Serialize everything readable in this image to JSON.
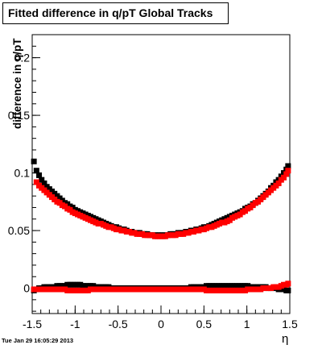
{
  "title": "Fitted difference in q/pT  Global Tracks",
  "timestamp": "Tue Jan 29 16:05:29 2013",
  "chart_data": {
    "type": "scatter",
    "title": "Fitted difference in q/pT  Global Tracks",
    "xlabel": "η",
    "ylabel": "difference in q/pT",
    "xlim": [
      -1.5,
      1.5
    ],
    "ylim": [
      -0.022,
      0.22
    ],
    "x_ticks": [
      -1.5,
      -1,
      -0.5,
      0,
      0.5,
      1,
      1.5
    ],
    "x_tick_labels": [
      "-1.5",
      "-1",
      "-0.5",
      "0",
      "0.5",
      "1",
      "1.5"
    ],
    "y_ticks": [
      0,
      0.05,
      0.1,
      0.15,
      0.2
    ],
    "y_tick_labels": [
      "0",
      "0.05",
      "0.1",
      "0.15",
      "0.2"
    ],
    "grid": false,
    "series": [
      {
        "color": "#000000",
        "marker": "square",
        "x": [
          -1.48,
          -1.45,
          -1.42,
          -1.39,
          -1.36,
          -1.33,
          -1.3,
          -1.27,
          -1.24,
          -1.21,
          -1.18,
          -1.15,
          -1.12,
          -1.09,
          -1.06,
          -1.03,
          -1.0,
          -0.97,
          -0.94,
          -0.91,
          -0.88,
          -0.85,
          -0.82,
          -0.79,
          -0.76,
          -0.73,
          -0.7,
          -0.67,
          -0.64,
          -0.61,
          -0.58,
          -0.55,
          -0.52,
          -0.49,
          -0.46,
          -0.43,
          -0.4,
          -0.37,
          -0.34,
          -0.31,
          -0.28,
          -0.25,
          -0.22,
          -0.19,
          -0.16,
          -0.13,
          -0.1,
          -0.07,
          -0.04,
          -0.01,
          0.02,
          0.05,
          0.08,
          0.11,
          0.14,
          0.17,
          0.2,
          0.23,
          0.26,
          0.29,
          0.32,
          0.35,
          0.38,
          0.41,
          0.44,
          0.47,
          0.5,
          0.53,
          0.56,
          0.59,
          0.62,
          0.65,
          0.68,
          0.71,
          0.74,
          0.77,
          0.8,
          0.83,
          0.86,
          0.89,
          0.92,
          0.95,
          0.98,
          1.01,
          1.04,
          1.07,
          1.1,
          1.13,
          1.16,
          1.19,
          1.22,
          1.25,
          1.28,
          1.31,
          1.34,
          1.37,
          1.4,
          1.43,
          1.46,
          1.48
        ],
        "y": [
          0.11,
          0.102,
          0.098,
          0.094,
          0.091,
          0.088,
          0.086,
          0.084,
          0.082,
          0.08,
          0.078,
          0.076,
          0.074,
          0.073,
          0.071,
          0.07,
          0.068,
          0.067,
          0.066,
          0.065,
          0.064,
          0.063,
          0.062,
          0.061,
          0.06,
          0.059,
          0.058,
          0.057,
          0.056,
          0.055,
          0.054,
          0.053,
          0.053,
          0.052,
          0.051,
          0.051,
          0.05,
          0.049,
          0.049,
          0.048,
          0.048,
          0.048,
          0.047,
          0.047,
          0.047,
          0.046,
          0.046,
          0.046,
          0.046,
          0.046,
          0.046,
          0.046,
          0.046,
          0.047,
          0.047,
          0.047,
          0.048,
          0.048,
          0.048,
          0.049,
          0.049,
          0.05,
          0.05,
          0.051,
          0.051,
          0.052,
          0.053,
          0.053,
          0.054,
          0.055,
          0.056,
          0.057,
          0.058,
          0.059,
          0.06,
          0.061,
          0.062,
          0.063,
          0.064,
          0.065,
          0.066,
          0.067,
          0.069,
          0.07,
          0.071,
          0.073,
          0.074,
          0.076,
          0.078,
          0.08,
          0.082,
          0.084,
          0.087,
          0.089,
          0.092,
          0.094,
          0.097,
          0.1,
          0.103,
          0.106
        ]
      },
      {
        "color": "#ff0000",
        "marker": "square",
        "x": [
          -1.45,
          -1.42,
          -1.39,
          -1.36,
          -1.33,
          -1.3,
          -1.27,
          -1.24,
          -1.21,
          -1.18,
          -1.15,
          -1.12,
          -1.09,
          -1.06,
          -1.03,
          -1.0,
          -0.97,
          -0.94,
          -0.91,
          -0.88,
          -0.85,
          -0.82,
          -0.79,
          -0.76,
          -0.73,
          -0.7,
          -0.67,
          -0.64,
          -0.61,
          -0.58,
          -0.55,
          -0.52,
          -0.49,
          -0.46,
          -0.43,
          -0.4,
          -0.37,
          -0.34,
          -0.31,
          -0.28,
          -0.25,
          -0.22,
          -0.19,
          -0.16,
          -0.13,
          -0.1,
          -0.07,
          -0.04,
          -0.01,
          0.02,
          0.05,
          0.08,
          0.11,
          0.14,
          0.17,
          0.2,
          0.23,
          0.26,
          0.29,
          0.32,
          0.35,
          0.38,
          0.41,
          0.44,
          0.47,
          0.5,
          0.53,
          0.56,
          0.59,
          0.62,
          0.65,
          0.68,
          0.71,
          0.74,
          0.77,
          0.8,
          0.83,
          0.86,
          0.89,
          0.92,
          0.95,
          0.98,
          1.01,
          1.04,
          1.07,
          1.1,
          1.13,
          1.16,
          1.19,
          1.22,
          1.25,
          1.28,
          1.31,
          1.34,
          1.37,
          1.4,
          1.43,
          1.46,
          1.48
        ],
        "y": [
          0.092,
          0.089,
          0.087,
          0.085,
          0.083,
          0.081,
          0.079,
          0.077,
          0.075,
          0.074,
          0.072,
          0.071,
          0.069,
          0.068,
          0.066,
          0.065,
          0.064,
          0.063,
          0.062,
          0.061,
          0.06,
          0.059,
          0.058,
          0.057,
          0.056,
          0.056,
          0.055,
          0.054,
          0.053,
          0.053,
          0.052,
          0.051,
          0.051,
          0.05,
          0.05,
          0.049,
          0.049,
          0.048,
          0.048,
          0.047,
          0.047,
          0.047,
          0.046,
          0.046,
          0.046,
          0.046,
          0.045,
          0.045,
          0.045,
          0.045,
          0.045,
          0.046,
          0.046,
          0.046,
          0.046,
          0.047,
          0.047,
          0.047,
          0.048,
          0.048,
          0.049,
          0.049,
          0.05,
          0.05,
          0.051,
          0.051,
          0.052,
          0.053,
          0.053,
          0.054,
          0.055,
          0.056,
          0.057,
          0.057,
          0.058,
          0.059,
          0.061,
          0.062,
          0.063,
          0.064,
          0.066,
          0.067,
          0.069,
          0.07,
          0.072,
          0.074,
          0.075,
          0.077,
          0.079,
          0.081,
          0.083,
          0.085,
          0.087,
          0.089,
          0.091,
          0.094,
          0.096,
          0.099,
          0.102
        ]
      },
      {
        "color": "#000000",
        "marker": "square",
        "x": [
          -1.48,
          -1.45,
          -1.42,
          -1.39,
          -1.36,
          -1.33,
          -1.3,
          -1.27,
          -1.24,
          -1.21,
          -1.18,
          -1.15,
          -1.12,
          -1.09,
          -1.06,
          -1.03,
          -1.0,
          -0.97,
          -0.94,
          -0.91,
          -0.88,
          -0.85,
          -0.82,
          -0.79,
          -0.76,
          -0.73,
          -0.7,
          -0.67,
          -0.64,
          -0.61,
          -0.58,
          -0.55,
          -0.52,
          -0.49,
          -0.46,
          -0.43,
          -0.4,
          -0.37,
          -0.34,
          -0.31,
          -0.28,
          -0.25,
          -0.22,
          -0.19,
          -0.16,
          -0.13,
          -0.1,
          -0.07,
          -0.04,
          -0.01,
          0.02,
          0.05,
          0.08,
          0.11,
          0.14,
          0.17,
          0.2,
          0.23,
          0.26,
          0.29,
          0.32,
          0.35,
          0.38,
          0.41,
          0.44,
          0.47,
          0.5,
          0.53,
          0.56,
          0.59,
          0.62,
          0.65,
          0.68,
          0.71,
          0.74,
          0.77,
          0.8,
          0.83,
          0.86,
          0.89,
          0.92,
          0.95,
          0.98,
          1.01,
          1.04,
          1.07,
          1.1,
          1.13,
          1.16,
          1.19,
          1.22,
          1.25,
          1.28,
          1.31,
          1.34,
          1.37,
          1.4,
          1.43,
          1.46,
          1.48
        ],
        "y": [
          -0.002,
          -0.001,
          0.0,
          0.0,
          0.001,
          0.001,
          0.001,
          0.001,
          0.001,
          0.002,
          0.002,
          0.002,
          0.002,
          0.003,
          0.003,
          0.003,
          0.003,
          0.003,
          0.003,
          0.002,
          0.002,
          0.002,
          0.002,
          0.002,
          0.001,
          0.001,
          0.001,
          0.001,
          0.001,
          0.001,
          0.0,
          0.0,
          0.0,
          0.0,
          0.0,
          0.0,
          0.0,
          0.0,
          0.0,
          0.0,
          0.0,
          0.0,
          0.0,
          0.0,
          0.0,
          0.0,
          0.0,
          0.0,
          0.0,
          0.0,
          0.0,
          0.0,
          0.0,
          0.0,
          0.0,
          0.0,
          0.0,
          0.0,
          0.0,
          0.0,
          0.0,
          0.001,
          0.001,
          0.001,
          0.001,
          0.001,
          0.001,
          0.002,
          0.002,
          0.002,
          0.002,
          0.002,
          0.002,
          0.002,
          0.002,
          0.002,
          0.002,
          0.002,
          0.002,
          0.002,
          0.002,
          0.002,
          0.002,
          0.002,
          0.001,
          0.001,
          0.001,
          0.001,
          0.001,
          0.001,
          0.001,
          0.0,
          0.0,
          0.0,
          0.0,
          -0.001,
          -0.001,
          -0.001,
          -0.002,
          -0.002
        ]
      },
      {
        "color": "#ff0000",
        "marker": "square",
        "x": [
          -1.48,
          -1.45,
          -1.42,
          -1.39,
          -1.36,
          -1.33,
          -1.3,
          -1.27,
          -1.24,
          -1.21,
          -1.18,
          -1.15,
          -1.12,
          -1.09,
          -1.06,
          -1.03,
          -1.0,
          -0.97,
          -0.94,
          -0.91,
          -0.88,
          -0.85,
          -0.82,
          -0.79,
          -0.76,
          -0.73,
          -0.7,
          -0.67,
          -0.64,
          -0.61,
          -0.58,
          -0.55,
          -0.52,
          -0.49,
          -0.46,
          -0.43,
          -0.4,
          -0.37,
          -0.34,
          -0.31,
          -0.28,
          -0.25,
          -0.22,
          -0.19,
          -0.16,
          -0.13,
          -0.1,
          -0.07,
          -0.04,
          -0.01,
          0.02,
          0.05,
          0.08,
          0.11,
          0.14,
          0.17,
          0.2,
          0.23,
          0.26,
          0.29,
          0.32,
          0.35,
          0.38,
          0.41,
          0.44,
          0.47,
          0.5,
          0.53,
          0.56,
          0.59,
          0.62,
          0.65,
          0.68,
          0.71,
          0.74,
          0.77,
          0.8,
          0.83,
          0.86,
          0.89,
          0.92,
          0.95,
          0.98,
          1.01,
          1.04,
          1.07,
          1.1,
          1.13,
          1.16,
          1.19,
          1.22,
          1.25,
          1.28,
          1.31,
          1.34,
          1.37,
          1.4,
          1.43,
          1.46,
          1.48
        ],
        "y": [
          -0.001,
          -0.001,
          -0.001,
          -0.001,
          -0.001,
          -0.001,
          -0.001,
          -0.001,
          -0.001,
          -0.001,
          -0.001,
          -0.001,
          -0.001,
          -0.002,
          -0.002,
          -0.002,
          -0.002,
          -0.002,
          -0.002,
          -0.002,
          -0.002,
          -0.002,
          -0.001,
          -0.001,
          -0.001,
          -0.001,
          -0.001,
          -0.001,
          -0.001,
          -0.001,
          -0.001,
          -0.001,
          -0.001,
          -0.001,
          -0.001,
          -0.001,
          -0.001,
          -0.001,
          -0.001,
          -0.001,
          -0.001,
          -0.001,
          -0.001,
          -0.001,
          -0.001,
          -0.001,
          -0.001,
          -0.001,
          -0.001,
          -0.001,
          -0.001,
          -0.001,
          -0.001,
          -0.001,
          -0.001,
          -0.001,
          -0.001,
          -0.001,
          -0.001,
          -0.001,
          -0.001,
          -0.001,
          -0.001,
          -0.001,
          -0.001,
          -0.001,
          -0.001,
          -0.002,
          -0.002,
          -0.002,
          -0.002,
          -0.002,
          -0.002,
          -0.002,
          -0.002,
          -0.002,
          -0.002,
          -0.002,
          -0.002,
          -0.002,
          -0.002,
          -0.002,
          -0.002,
          -0.001,
          -0.001,
          -0.001,
          -0.001,
          -0.001,
          -0.001,
          0.0,
          0.0,
          0.0,
          0.0,
          0.001,
          0.001,
          0.001,
          0.002,
          0.003,
          0.003,
          0.004
        ]
      }
    ]
  }
}
